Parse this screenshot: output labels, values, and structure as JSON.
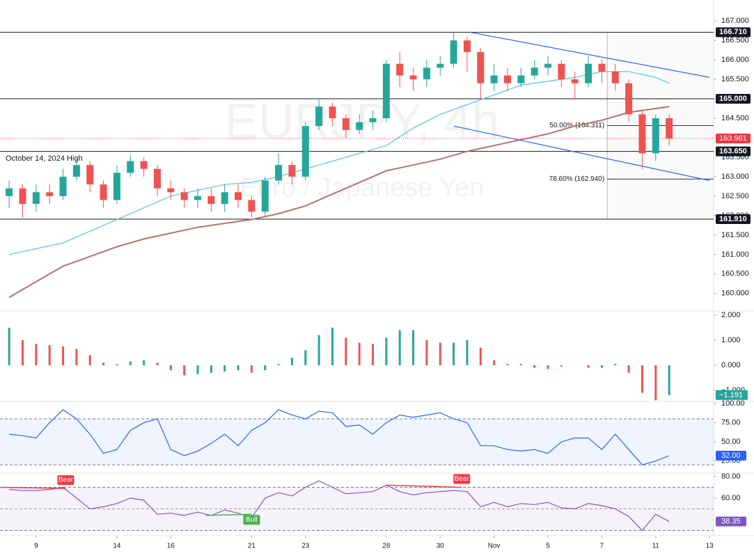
{
  "chart_data": [
    {
      "type": "candlestick",
      "watermark": "EURJPY, 4h",
      "watermark_subtitle": "Euro / Japanese Yen",
      "annotation": "October 14, 2024 High",
      "x": [
        -1,
        -0.5,
        0,
        0.5,
        1,
        1.5,
        2,
        2.5,
        3,
        3.5,
        4,
        4.5,
        5,
        5.5,
        6,
        6.5,
        7,
        7.5,
        8,
        8.5,
        9,
        9.5,
        10,
        10.5,
        11,
        11.5,
        12,
        12.5,
        13,
        13.5,
        14,
        14.5,
        15,
        15.5,
        16,
        16.5,
        17,
        17.5,
        18,
        18.5,
        19,
        19.5,
        20,
        20.5,
        21,
        21.5,
        22,
        22.5,
        23,
        23.5
      ],
      "open": [
        162.5,
        162.7,
        162.3,
        162.6,
        162.5,
        163.0,
        163.3,
        162.8,
        162.4,
        163.1,
        163.4,
        163.2,
        162.7,
        162.6,
        162.4,
        162.5,
        162.3,
        162.6,
        162.4,
        162.1,
        162.9,
        163.3,
        163.0,
        164.3,
        164.8,
        164.5,
        164.2,
        164.4,
        164.5,
        165.9,
        165.6,
        165.5,
        165.8,
        165.9,
        166.5,
        166.2,
        165.4,
        165.6,
        165.4,
        165.6,
        165.8,
        165.9,
        165.5,
        165.4,
        165.9,
        165.7,
        165.4,
        164.6,
        163.6,
        164.5
      ],
      "high": [
        162.9,
        162.8,
        162.8,
        162.8,
        163.2,
        163.45,
        163.4,
        162.9,
        163.3,
        163.55,
        163.5,
        163.3,
        162.9,
        162.7,
        162.7,
        162.7,
        162.8,
        162.8,
        162.5,
        163.0,
        163.6,
        163.4,
        164.4,
        165.0,
        164.9,
        164.6,
        164.6,
        164.7,
        166.0,
        166.2,
        165.8,
        166.0,
        166.1,
        166.71,
        166.6,
        166.3,
        165.9,
        165.8,
        165.8,
        166.0,
        166.1,
        166.0,
        165.7,
        166.1,
        166.0,
        165.9,
        165.5,
        164.7,
        164.6,
        164.6
      ],
      "low": [
        162.2,
        161.95,
        162.1,
        162.3,
        162.4,
        162.9,
        162.6,
        162.2,
        162.3,
        163.0,
        163.0,
        162.5,
        162.4,
        162.2,
        162.2,
        162.1,
        162.1,
        162.2,
        161.95,
        162.0,
        162.8,
        162.8,
        162.9,
        164.2,
        164.3,
        164.0,
        164.1,
        164.2,
        164.4,
        165.3,
        165.2,
        165.3,
        165.6,
        165.8,
        165.7,
        165.0,
        165.2,
        165.2,
        165.3,
        165.5,
        165.6,
        165.3,
        165.0,
        165.3,
        165.4,
        165.2,
        164.4,
        163.2,
        163.4,
        163.8
      ],
      "close": [
        162.7,
        162.3,
        162.6,
        162.5,
        163.0,
        163.3,
        162.8,
        162.4,
        163.1,
        163.4,
        163.2,
        162.7,
        162.6,
        162.4,
        162.5,
        162.3,
        162.6,
        162.4,
        162.1,
        162.9,
        163.3,
        163.0,
        164.3,
        164.8,
        164.5,
        164.2,
        164.4,
        164.5,
        165.9,
        165.6,
        165.5,
        165.8,
        165.9,
        166.5,
        166.2,
        165.4,
        165.6,
        165.4,
        165.6,
        165.8,
        165.9,
        165.5,
        165.4,
        165.9,
        165.7,
        165.4,
        164.6,
        163.6,
        164.5,
        163.98
      ],
      "up_color": "#26a69a",
      "down_color": "#ef5350",
      "xlim": [
        -1.34,
        25.15
      ],
      "xticks": [
        {
          "value": 0,
          "label": "9"
        },
        {
          "value": 3,
          "label": "14"
        },
        {
          "value": 5,
          "label": "16"
        },
        {
          "value": 8,
          "label": "21"
        },
        {
          "value": 10,
          "label": "23"
        },
        {
          "value": 13,
          "label": "28"
        },
        {
          "value": 15,
          "label": "30"
        },
        {
          "value": 17,
          "label": "Nov"
        },
        {
          "value": 19,
          "label": "5"
        },
        {
          "value": 21,
          "label": "7"
        },
        {
          "value": 23,
          "label": "11"
        },
        {
          "value": 25,
          "label": "13"
        }
      ],
      "ylim": [
        159.55,
        167.27
      ],
      "yticks": [
        {
          "value": 160,
          "label": "160.000"
        },
        {
          "value": 160.5,
          "label": "160.500"
        },
        {
          "value": 161,
          "label": "161.000"
        },
        {
          "value": 161.5,
          "label": "161.500"
        },
        {
          "value": 162,
          "label": "162.000"
        },
        {
          "value": 162.5,
          "label": "162.500"
        },
        {
          "value": 163,
          "label": "163.000"
        },
        {
          "value": 163.5,
          "label": "163.500"
        },
        {
          "value": 164,
          "label": "164.000"
        },
        {
          "value": 164.5,
          "label": "164.500"
        },
        {
          "value": 165,
          "label": "165.000"
        },
        {
          "value": 165.5,
          "label": "165.500"
        },
        {
          "value": 166,
          "label": "166.000"
        },
        {
          "value": 166.5,
          "label": "166.500"
        },
        {
          "value": 167,
          "label": "167.000"
        }
      ],
      "moving_averages": [
        {
          "color": "#5bc8e8",
          "x": [
            -1,
            0,
            1,
            2,
            3,
            4,
            5,
            6,
            7,
            8,
            9,
            10,
            11,
            12,
            13,
            14,
            15,
            16,
            17,
            18,
            19,
            20,
            21,
            22,
            23,
            23.5
          ],
          "values": [
            161.0,
            161.15,
            161.3,
            161.6,
            161.9,
            162.2,
            162.5,
            162.65,
            162.8,
            162.85,
            163.0,
            163.2,
            163.4,
            163.6,
            163.8,
            164.25,
            164.6,
            164.85,
            165.1,
            165.35,
            165.45,
            165.55,
            165.7,
            165.7,
            165.55,
            165.4
          ]
        },
        {
          "color": "#b5726a",
          "x": [
            -1,
            0,
            1,
            2,
            3,
            4,
            5,
            6,
            7,
            8,
            9,
            10,
            11,
            12,
            13,
            14,
            15,
            16,
            17,
            18,
            19,
            20,
            21,
            22,
            23,
            23.5
          ],
          "values": [
            159.9,
            160.3,
            160.7,
            160.95,
            161.2,
            161.4,
            161.55,
            161.7,
            161.8,
            161.9,
            162.05,
            162.25,
            162.55,
            162.85,
            163.15,
            163.3,
            163.45,
            163.65,
            163.8,
            163.95,
            164.1,
            164.3,
            164.45,
            164.65,
            164.75,
            164.8
          ]
        }
      ],
      "trendlines": [
        {
          "color": "#2962ff",
          "x": [
            16.1,
            25
          ],
          "values": [
            166.71,
            165.55
          ]
        },
        {
          "color": "#2962ff",
          "x": [
            15.5,
            25
          ],
          "values": [
            164.3,
            162.9
          ]
        }
      ],
      "levels": [
        {
          "value": 166.71,
          "label": "166.710"
        },
        {
          "value": 165,
          "label": "165.000"
        },
        {
          "value": 163.65,
          "label": "163.650"
        },
        {
          "value": 161.91,
          "label": "161.910"
        }
      ],
      "price_marker": {
        "value": 163.981,
        "label": "163.981",
        "color": "#f23645"
      },
      "fib_start_x": 21.2,
      "fibs": [
        {
          "value": 164.311,
          "label": "50.00% (164.311)"
        },
        {
          "value": 162.94,
          "label": "78.60% (162.940)"
        }
      ]
    },
    {
      "type": "histogram",
      "values": [
        1.5,
        1.0,
        0.85,
        0.8,
        0.75,
        0.65,
        0.4,
        0.1,
        0.05,
        0.15,
        0.2,
        0.1,
        -0.2,
        -0.4,
        -0.35,
        -0.3,
        -0.25,
        -0.2,
        -0.3,
        -0.2,
        0.05,
        0.3,
        0.6,
        1.2,
        1.5,
        1.1,
        0.9,
        0.85,
        1.1,
        1.4,
        1.4,
        1.0,
        0.9,
        0.9,
        1.0,
        0.7,
        0.2,
        0.05,
        0.05,
        -0.1,
        -0.15,
        -0.05,
        0.0,
        -0.1,
        -0.1,
        0.05,
        -0.3,
        -1.1,
        -1.4,
        -1.191
      ],
      "up_color": "#26a69a",
      "down_color": "#ef5350",
      "ylim": [
        -1.444,
        2.167
      ],
      "yticks": [
        {
          "value": 2,
          "label": "2.000"
        },
        {
          "value": 1,
          "label": "1.000"
        },
        {
          "value": 0,
          "label": "0.000"
        },
        {
          "value": -1,
          "label": "−1.000"
        }
      ],
      "current_label": "−1.191",
      "current_color": "#26a69a"
    },
    {
      "type": "line",
      "values": [
        60,
        58,
        55,
        75,
        92,
        80,
        60,
        35,
        40,
        65,
        75,
        80,
        40,
        32,
        38,
        48,
        60,
        45,
        65,
        75,
        92,
        85,
        80,
        90,
        88,
        70,
        72,
        60,
        75,
        85,
        82,
        85,
        88,
        80,
        75,
        45,
        45,
        40,
        38,
        40,
        35,
        50,
        55,
        55,
        40,
        60,
        40,
        20,
        25,
        32
      ],
      "color": "#2962ff",
      "band": [
        20,
        80
      ],
      "band_color": "rgba(41,98,255,0.07)",
      "ylim": [
        9.3,
        101.85
      ],
      "yticks": [
        {
          "value": 100,
          "label": "100.00"
        },
        {
          "value": 75,
          "label": "75.00"
        },
        {
          "value": 50,
          "label": "50.00"
        },
        {
          "value": 25,
          "label": "25.00"
        }
      ],
      "current_label": "32.00"
    },
    {
      "type": "line",
      "values": [
        68,
        67,
        67,
        68,
        70,
        60,
        50,
        52,
        55,
        60,
        58,
        45,
        46,
        44,
        47,
        44,
        49,
        46,
        42,
        60,
        65,
        62,
        70,
        76,
        70,
        64,
        65,
        66,
        72,
        66,
        63,
        65,
        66,
        67,
        66,
        52,
        56,
        52,
        55,
        54,
        56,
        51,
        50,
        55,
        53,
        50,
        43,
        30,
        45,
        38.35
      ],
      "color": "#7e57c2",
      "band": [
        30,
        70
      ],
      "midline": 50,
      "band_color": "rgba(126,87,194,0.08)",
      "ylim": [
        25.2,
        82.6
      ],
      "yticks": [
        {
          "value": 80,
          "label": "80.00"
        },
        {
          "value": 60,
          "label": "60.00"
        }
      ],
      "current_label": "38.35",
      "divergences": [
        {
          "label": "Bear",
          "color": "#f23645",
          "x": [
            -1.3,
            1.1
          ],
          "values": [
            70,
            69
          ]
        },
        {
          "label": "Bull",
          "color": "#4caf50",
          "x": [
            6.3,
            8.0
          ],
          "values": [
            44,
            45
          ]
        },
        {
          "label": "Bear",
          "color": "#f23645",
          "x": [
            13,
            15.8
          ],
          "values": [
            72,
            70
          ]
        }
      ]
    }
  ]
}
